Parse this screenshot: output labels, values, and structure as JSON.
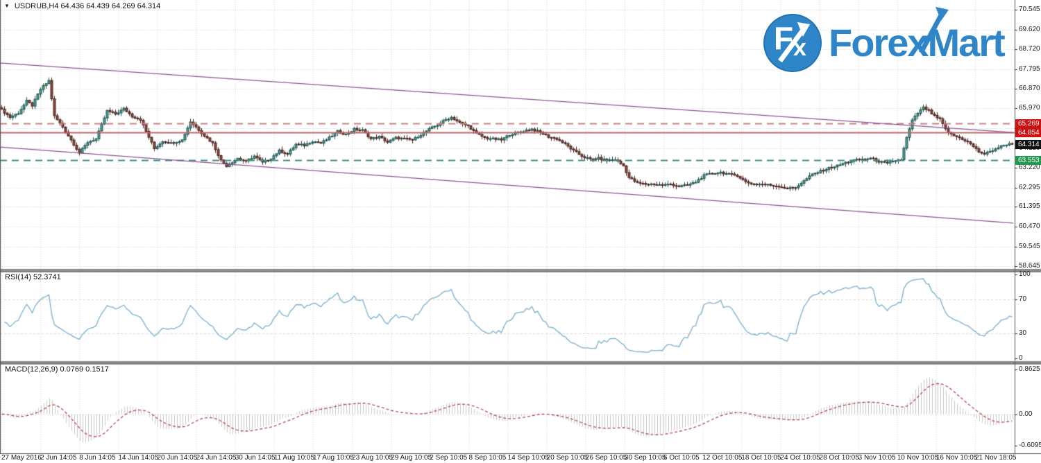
{
  "header": {
    "dropdown_icon": "▼",
    "symbol_line": "USDRUB,H4 64.436 64.439 64.269 64.314"
  },
  "logo": {
    "circle_f": "F",
    "circle_x": "x",
    "name_left": "Forex",
    "name_m": "M",
    "name_right": "art",
    "brand_color": "#2e86c8"
  },
  "rsi": {
    "label": "RSI(14) 52.3741",
    "ticks": [
      "100",
      "70",
      "30",
      "0"
    ],
    "levels": [
      70,
      30
    ],
    "line_color": "#79afcc",
    "last_value": 52.3741
  },
  "macd": {
    "label": "MACD(12,26,9) 0.0769 0.1517",
    "ticks": [
      "0.8625",
      "0.00",
      "-0.6095"
    ],
    "hist_color": "#c9c9c9",
    "signal_color": "#b44747",
    "last_macd": 0.0769,
    "last_signal": 0.1517
  },
  "price_badges": [
    {
      "text": "65.269",
      "value": 65.269,
      "bg": "#cf1010"
    },
    {
      "text": "64.854",
      "value": 64.854,
      "bg": "#cf1010"
    },
    {
      "text": "64.314",
      "value": 64.314,
      "bg": "#101010"
    },
    {
      "text": "63.553",
      "value": 63.553,
      "bg": "#219a50"
    }
  ],
  "chart_data": {
    "type": "candlestick",
    "symbol": "USDRUB",
    "timeframe": "H4",
    "last_quote": {
      "open": 64.436,
      "high": 64.439,
      "low": 64.269,
      "close": 64.314
    },
    "y_axis": {
      "min": 58.645,
      "max": 70.545,
      "tick_labels": [
        "70.545",
        "69.620",
        "68.720",
        "67.795",
        "66.870",
        "65.970",
        "65.045",
        "64.120",
        "63.220",
        "62.295",
        "61.395",
        "60.470",
        "59.545",
        "58.645"
      ]
    },
    "x_axis": {
      "labels": [
        "27 May 2016",
        "2 Jun 14:05",
        "8 Jun 14:05",
        "14 Jun 14:05",
        "20 Jun 14:05",
        "24 Jun 14:05",
        "30 Jun 14:05",
        "11 Aug 10:05",
        "17 Aug 10:05",
        "23 Aug 10:05",
        "29 Aug 10:05",
        "2 Sep 10:05",
        "8 Sep 10:05",
        "14 Sep 10:05",
        "20 Sep 10:05",
        "26 Sep 10:05",
        "30 Sep 10:05",
        "6 Oct 10:05",
        "12 Oct 10:05",
        "18 Oct 10:05",
        "24 Oct 10:05",
        "28 Oct 10:05",
        "3 Nov 10:05",
        "10 Nov 10:05",
        "16 Nov 10:05",
        "21 Nov 18:05"
      ]
    },
    "candle_count": 365,
    "close_path_anchors": [
      [
        0,
        65.9
      ],
      [
        3,
        65.55
      ],
      [
        6,
        65.75
      ],
      [
        9,
        66.3
      ],
      [
        11,
        66.1
      ],
      [
        14,
        66.85
      ],
      [
        17,
        67.25
      ],
      [
        19,
        65.6
      ],
      [
        22,
        65.1
      ],
      [
        26,
        64.3
      ],
      [
        28,
        63.9
      ],
      [
        31,
        64.4
      ],
      [
        34,
        64.55
      ],
      [
        38,
        65.85
      ],
      [
        41,
        65.7
      ],
      [
        44,
        65.95
      ],
      [
        47,
        65.6
      ],
      [
        50,
        65.45
      ],
      [
        52,
        64.9
      ],
      [
        55,
        64.1
      ],
      [
        58,
        64.45
      ],
      [
        61,
        64.35
      ],
      [
        65,
        64.5
      ],
      [
        68,
        65.35
      ],
      [
        70,
        65.1
      ],
      [
        73,
        64.7
      ],
      [
        76,
        64.35
      ],
      [
        79,
        63.55
      ],
      [
        81,
        63.3
      ],
      [
        85,
        63.65
      ],
      [
        88,
        63.5
      ],
      [
        91,
        63.75
      ],
      [
        94,
        63.45
      ],
      [
        97,
        63.65
      ],
      [
        100,
        64.0
      ],
      [
        103,
        63.85
      ],
      [
        106,
        64.3
      ],
      [
        109,
        64.25
      ],
      [
        112,
        64.45
      ],
      [
        115,
        64.35
      ],
      [
        118,
        64.6
      ],
      [
        121,
        64.9
      ],
      [
        124,
        64.75
      ],
      [
        127,
        65.0
      ],
      [
        130,
        64.95
      ],
      [
        133,
        64.55
      ],
      [
        136,
        64.65
      ],
      [
        139,
        64.4
      ],
      [
        142,
        64.6
      ],
      [
        145,
        64.55
      ],
      [
        148,
        64.5
      ],
      [
        151,
        64.75
      ],
      [
        154,
        65.0
      ],
      [
        157,
        65.2
      ],
      [
        160,
        65.45
      ],
      [
        162,
        65.55
      ],
      [
        165,
        65.3
      ],
      [
        168,
        65.15
      ],
      [
        171,
        64.8
      ],
      [
        174,
        64.6
      ],
      [
        177,
        64.55
      ],
      [
        180,
        64.5
      ],
      [
        183,
        64.75
      ],
      [
        186,
        64.85
      ],
      [
        189,
        64.95
      ],
      [
        191,
        65.0
      ],
      [
        194,
        64.85
      ],
      [
        197,
        64.65
      ],
      [
        200,
        64.55
      ],
      [
        203,
        64.3
      ],
      [
        206,
        64.0
      ],
      [
        209,
        63.75
      ],
      [
        212,
        63.6
      ],
      [
        215,
        63.65
      ],
      [
        218,
        63.55
      ],
      [
        221,
        63.6
      ],
      [
        224,
        63.3
      ],
      [
        226,
        62.75
      ],
      [
        229,
        62.5
      ],
      [
        232,
        62.45
      ],
      [
        235,
        62.45
      ],
      [
        238,
        62.4
      ],
      [
        241,
        62.45
      ],
      [
        244,
        62.35
      ],
      [
        247,
        62.4
      ],
      [
        250,
        62.55
      ],
      [
        253,
        62.85
      ],
      [
        256,
        62.95
      ],
      [
        259,
        63.0
      ],
      [
        262,
        62.9
      ],
      [
        265,
        62.85
      ],
      [
        268,
        62.55
      ],
      [
        271,
        62.45
      ],
      [
        274,
        62.45
      ],
      [
        277,
        62.4
      ],
      [
        280,
        62.35
      ],
      [
        283,
        62.25
      ],
      [
        286,
        62.3
      ],
      [
        289,
        62.6
      ],
      [
        292,
        62.9
      ],
      [
        295,
        63.05
      ],
      [
        298,
        63.2
      ],
      [
        301,
        63.3
      ],
      [
        304,
        63.45
      ],
      [
        307,
        63.55
      ],
      [
        310,
        63.6
      ],
      [
        313,
        63.65
      ],
      [
        316,
        63.5
      ],
      [
        319,
        63.4
      ],
      [
        322,
        63.55
      ],
      [
        324,
        63.6
      ],
      [
        326,
        64.6
      ],
      [
        328,
        65.4
      ],
      [
        330,
        65.75
      ],
      [
        332,
        66.0
      ],
      [
        334,
        65.85
      ],
      [
        336,
        65.6
      ],
      [
        338,
        65.45
      ],
      [
        340,
        65.0
      ],
      [
        342,
        64.75
      ],
      [
        344,
        64.65
      ],
      [
        346,
        64.55
      ],
      [
        348,
        64.4
      ],
      [
        350,
        64.2
      ],
      [
        352,
        63.95
      ],
      [
        354,
        63.85
      ],
      [
        356,
        63.95
      ],
      [
        358,
        64.1
      ],
      [
        360,
        64.2
      ],
      [
        362,
        64.3
      ],
      [
        364,
        64.314
      ]
    ],
    "overlays": {
      "hlines": [
        {
          "price": 65.269,
          "style": "dashed",
          "color": "#c87e7e",
          "width": 2
        },
        {
          "price": 64.854,
          "style": "solid",
          "color": "#bf6666",
          "width": 2
        },
        {
          "price": 63.553,
          "style": "dashed",
          "color": "#3f9184",
          "width": 2
        }
      ],
      "trend_channel": {
        "color": "#8a5490",
        "upper": {
          "p_start": 68.07,
          "p_end": 64.85
        },
        "lower": {
          "p_start": 64.17,
          "p_end": 60.64
        }
      }
    },
    "indicators": [
      {
        "name": "RSI",
        "period": 14,
        "last": 52.3741,
        "range": [
          0,
          100
        ],
        "levels": [
          70,
          30
        ]
      },
      {
        "name": "MACD",
        "params": [
          12,
          26,
          9
        ],
        "last_macd": 0.0769,
        "last_signal": 0.1517,
        "axis_max": 0.8625,
        "axis_min": -0.6095
      }
    ],
    "colors": {
      "background": "#ffffff",
      "grid": "#d4d4d4",
      "up_fill": "#4f9e98",
      "up_edge": "#1f524d",
      "down_fill": "#8a4a42",
      "down_edge": "#47231e",
      "frame": "#555555",
      "divider": "#9a9a9a"
    }
  }
}
